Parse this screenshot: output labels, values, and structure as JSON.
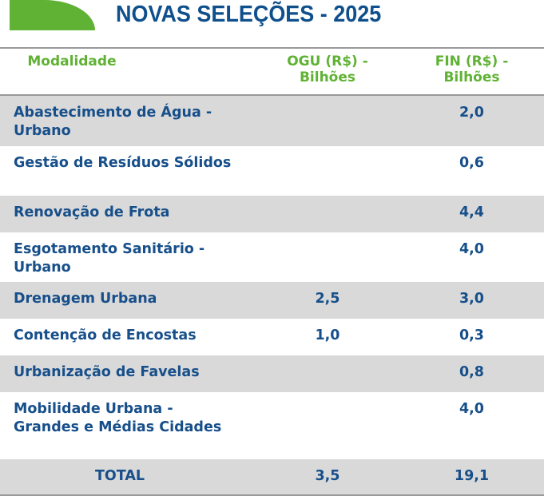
{
  "title": "NOVAS SELEÇÕES - 2025",
  "headers": [
    "Modalidade",
    "OGU (R$) - Bilhões",
    "FIN (R$) - Bilhões"
  ],
  "rows": [
    {
      "modalidade": "Abastecimento de Água - Urbano",
      "ogu": "",
      "fin": "2,0"
    },
    {
      "modalidade": "Gestão de Resíduos Sólidos",
      "ogu": "",
      "fin": "0,6"
    },
    {
      "modalidade": "Renovação de Frota",
      "ogu": "",
      "fin": "4,4"
    },
    {
      "modalidade": "Esgotamento Sanitário - Urbano",
      "ogu": "",
      "fin": "4,0"
    },
    {
      "modalidade": "Drenagem Urbana",
      "ogu": "2,5",
      "fin": "3,0"
    },
    {
      "modalidade": "Contenção de Encostas",
      "ogu": "1,0",
      "fin": "0,3"
    },
    {
      "modalidade": "Urbanização de Favelas",
      "ogu": "",
      "fin": "0,8"
    },
    {
      "modalidade": "Mobilidade Urbana - Grandes e Médias Cidades",
      "ogu": "",
      "fin": "4,0"
    }
  ],
  "total": {
    "label": "TOTAL",
    "ogu": "3,5",
    "fin": "19,1"
  }
}
